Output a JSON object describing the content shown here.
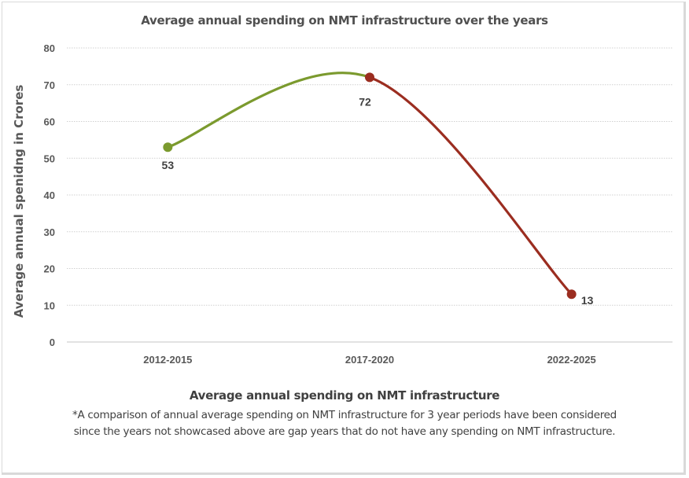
{
  "chart_data": {
    "type": "line",
    "title": "Average annual spending on NMT infrastructure over the years",
    "xlabel": "Average annual spending on NMT infrastructure",
    "ylabel": "Average  annual  spenidng in Crores",
    "categories": [
      "2012-2015",
      "2017-2020",
      "2022-2025"
    ],
    "values": [
      53,
      72,
      13
    ],
    "data_labels": [
      "53",
      "72",
      "13"
    ],
    "ylim": [
      0,
      80
    ],
    "yticks": [
      0,
      10,
      20,
      30,
      40,
      50,
      60,
      70,
      80
    ],
    "grid": true,
    "smooth": true,
    "segment_colors": [
      "#7b9a2e",
      "#9b2d20"
    ],
    "legend": "none"
  },
  "footnote": "*A comparison of annual average spending on NMT infrastructure for 3 year periods have been considered since the years not showcased above are gap years that do not have any spending on NMT infrastructure."
}
